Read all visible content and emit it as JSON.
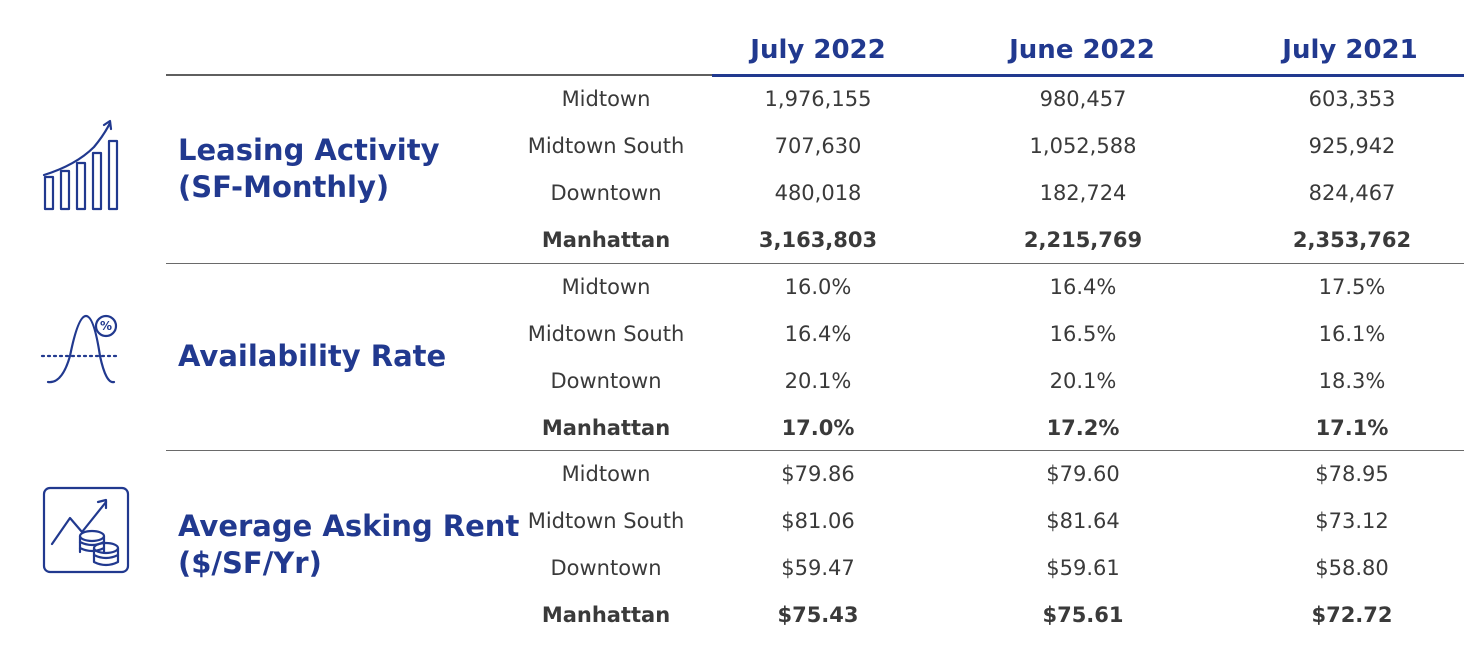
{
  "columns": [
    "July 2022",
    "June 2022",
    "July 2021"
  ],
  "sections": [
    {
      "title_line1": "Leasing Activity",
      "title_line2": "(SF-Monthly)",
      "icon": "rising-bar-chart-icon",
      "rows": [
        {
          "submarket": "Midtown",
          "values": [
            "1,976,155",
            "980,457",
            "603,353"
          ]
        },
        {
          "submarket": "Midtown South",
          "values": [
            "707,630",
            "1,052,588",
            "925,942"
          ]
        },
        {
          "submarket": "Downtown",
          "values": [
            "480,018",
            "182,724",
            "824,467"
          ]
        },
        {
          "submarket": "Manhattan",
          "values": [
            "3,163,803",
            "2,215,769",
            "2,353,762"
          ]
        }
      ]
    },
    {
      "title_line1": "Availability Rate",
      "title_line2": "",
      "icon": "percent-curve-icon",
      "rows": [
        {
          "submarket": "Midtown",
          "values": [
            "16.0%",
            "16.4%",
            "17.5%"
          ]
        },
        {
          "submarket": "Midtown South",
          "values": [
            "16.4%",
            "16.5%",
            "16.1%"
          ]
        },
        {
          "submarket": "Downtown",
          "values": [
            "20.1%",
            "20.1%",
            "18.3%"
          ]
        },
        {
          "submarket": "Manhattan",
          "values": [
            "17.0%",
            "17.2%",
            "17.1%"
          ]
        }
      ]
    },
    {
      "title_line1": "Average Asking Rent",
      "title_line2": "($/SF/Yr)",
      "icon": "coins-growth-icon",
      "rows": [
        {
          "submarket": "Midtown",
          "values": [
            "$79.86",
            "$79.60",
            "$78.95"
          ]
        },
        {
          "submarket": "Midtown South",
          "values": [
            "$81.06",
            "$81.64",
            "$73.12"
          ]
        },
        {
          "submarket": "Downtown",
          "values": [
            "$59.47",
            "$59.61",
            "$58.80"
          ]
        },
        {
          "submarket": "Manhattan",
          "values": [
            "$75.43",
            "$75.61",
            "$72.72"
          ]
        }
      ]
    }
  ],
  "colors": {
    "accent": "#21398f",
    "text": "#3a3a3a",
    "rule": "#6a6a6a"
  }
}
